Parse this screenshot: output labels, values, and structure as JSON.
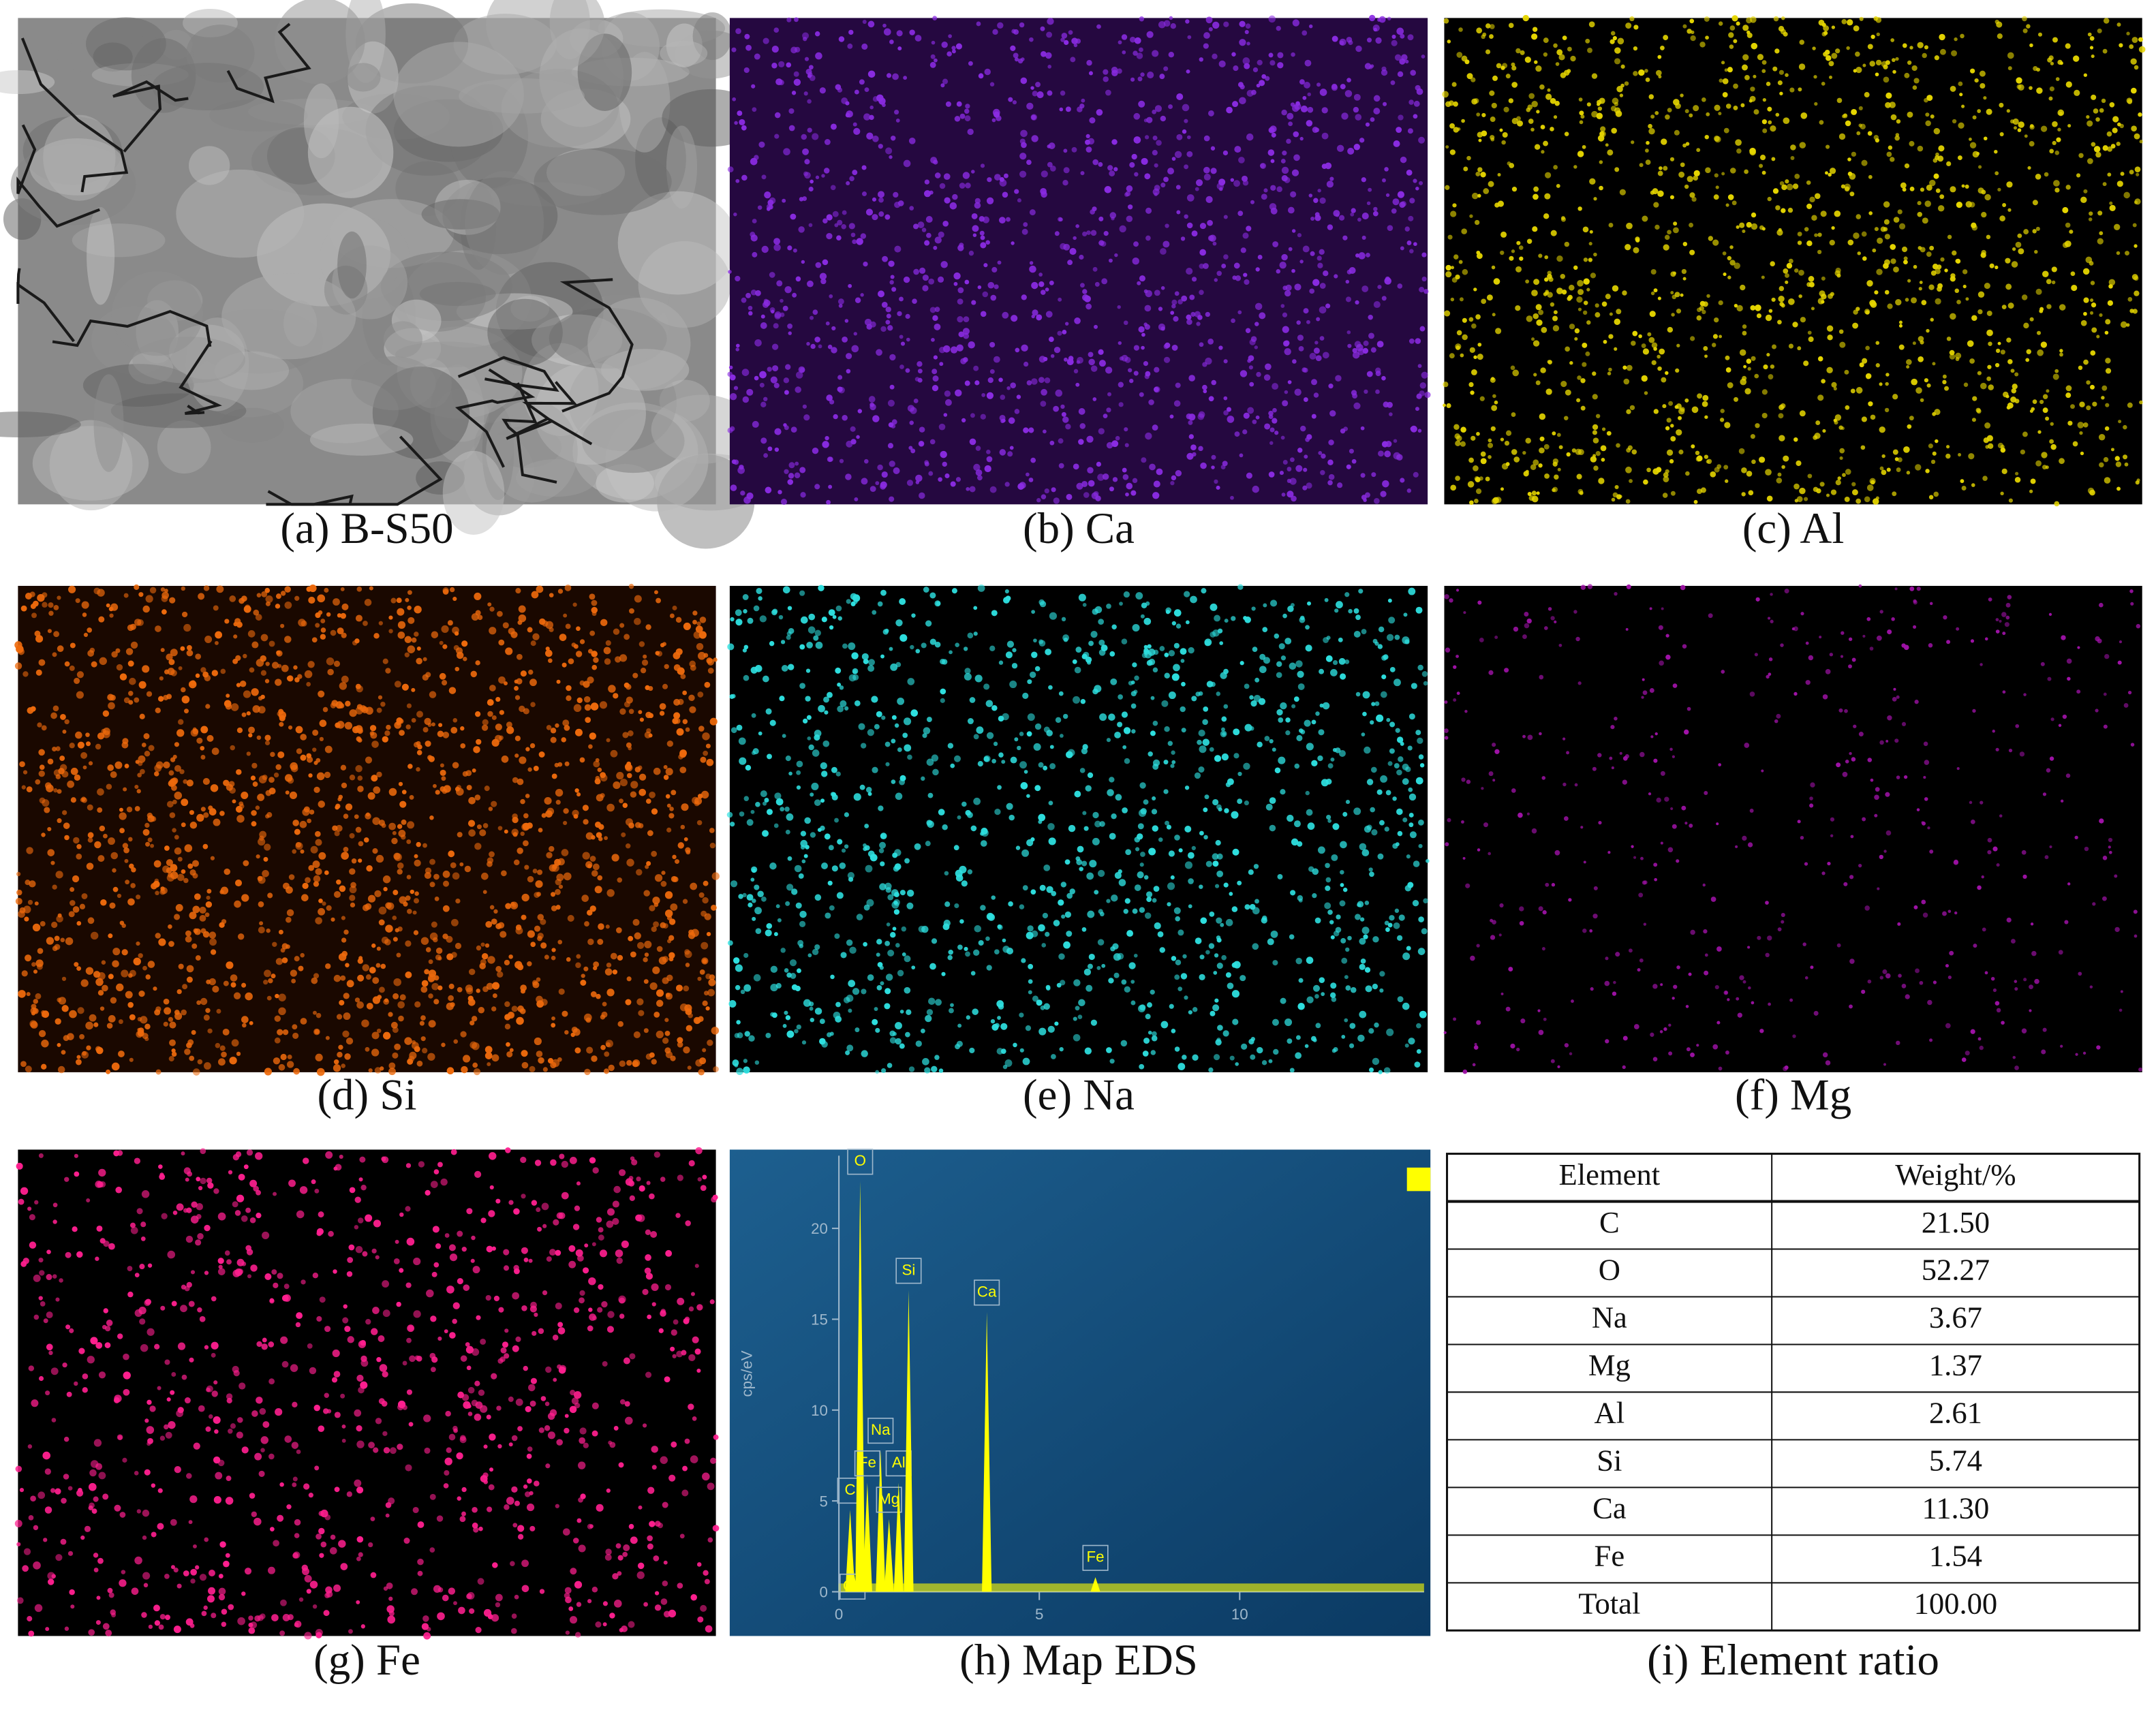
{
  "captions": [
    "(a) B-S50",
    "(b) Ca",
    "(c) Al",
    "(d) Si",
    "(e) Na",
    "(f) Mg",
    "(g) Fe",
    "(h) Map EDS",
    "(i) Element ratio"
  ],
  "chart_data": {
    "type": "spectrum",
    "y_label": "cps/eV",
    "color": "#ffff00",
    "xlim": [
      0,
      14.6
    ],
    "ylim": [
      0,
      24
    ],
    "xticks": [
      0,
      5,
      10
    ],
    "yticks": [
      0,
      5,
      10,
      15,
      20
    ],
    "x": [
      0.28,
      0.34,
      0.53,
      0.71,
      1.04,
      1.25,
      1.49,
      1.74,
      3.69,
      6.4
    ],
    "values": [
      4.5,
      1.5,
      22.6,
      6,
      7.8,
      4,
      6,
      16.6,
      15.4,
      0.8
    ],
    "labels": [
      "C",
      "Ca",
      "O",
      "Fe",
      "Na",
      "Mg",
      "Al",
      "Si",
      "Ca",
      "Fe"
    ]
  },
  "table": {
    "header": [
      "Element",
      "Weight/%"
    ],
    "rows": [
      [
        "C",
        "21.50"
      ],
      [
        "O",
        "52.27"
      ],
      [
        "Na",
        "3.67"
      ],
      [
        "Mg",
        "1.37"
      ],
      [
        "Al",
        "2.61"
      ],
      [
        "Si",
        "5.74"
      ],
      [
        "Ca",
        "11.30"
      ],
      [
        "Fe",
        "1.54"
      ],
      [
        "Total",
        "100.00"
      ]
    ]
  }
}
